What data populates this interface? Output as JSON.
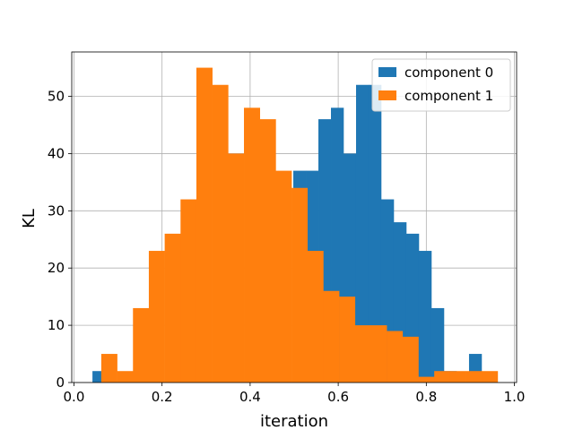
{
  "chart_data": {
    "type": "histogram",
    "xlabel": "iteration",
    "ylabel": "KL",
    "xlim": [
      -0.005,
      1.005
    ],
    "ylim": [
      0,
      57.75
    ],
    "xticks": [
      0.0,
      0.2,
      0.4,
      0.6,
      0.8,
      1.0
    ],
    "xtick_labels": [
      "0.0",
      "0.2",
      "0.4",
      "0.6",
      "0.8",
      "1.0"
    ],
    "yticks": [
      0,
      10,
      20,
      30,
      40,
      50
    ],
    "ytick_labels": [
      "0",
      "10",
      "20",
      "30",
      "40",
      "50"
    ],
    "grid": true,
    "legend_position": "top-right",
    "series": [
      {
        "name": "component 0",
        "color": "#1f77b4",
        "bin_edges": [
          0.042,
          0.0705,
          0.099,
          0.1275,
          0.156,
          0.1845,
          0.213,
          0.2415,
          0.27,
          0.2985,
          0.327,
          0.3555,
          0.384,
          0.4125,
          0.441,
          0.4695,
          0.498,
          0.5265,
          0.555,
          0.5835,
          0.612,
          0.6405,
          0.669,
          0.6975,
          0.726,
          0.7545,
          0.783,
          0.8115,
          0.84,
          0.8685,
          0.897,
          0.9255
        ],
        "counts": [
          2,
          0,
          0,
          0,
          0,
          0,
          0,
          0,
          0,
          0,
          0,
          0,
          0,
          0,
          0,
          0,
          37,
          37,
          46,
          48,
          40,
          52,
          52,
          32,
          28,
          26,
          23,
          13,
          2,
          0,
          5
        ]
      },
      {
        "name": "component 1",
        "color": "#ff7f0e",
        "bin_edges": [
          0.062,
          0.098,
          0.134,
          0.17,
          0.206,
          0.242,
          0.278,
          0.314,
          0.35,
          0.386,
          0.422,
          0.458,
          0.494,
          0.53,
          0.566,
          0.602,
          0.638,
          0.674,
          0.71,
          0.746,
          0.782,
          0.818,
          0.854,
          0.89,
          0.926,
          0.962
        ],
        "counts": [
          5,
          2,
          13,
          23,
          26,
          32,
          55,
          52,
          40,
          48,
          46,
          37,
          34,
          23,
          16,
          15,
          10,
          10,
          9,
          8,
          1,
          2,
          2,
          2,
          2
        ]
      }
    ]
  }
}
